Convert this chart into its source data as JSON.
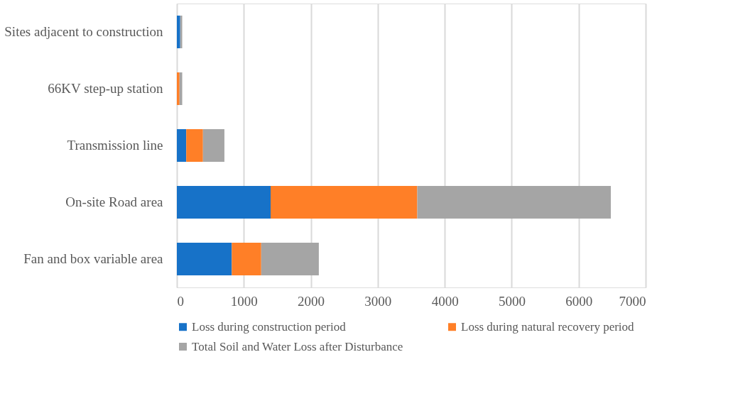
{
  "chart_data": {
    "type": "bar",
    "orientation": "horizontal",
    "stacked": true,
    "categories": [
      "Sites adjacent to construction",
      "66KV step-up station",
      "Transmission line",
      "On-site Road area",
      "Fan and box variable area"
    ],
    "series": [
      {
        "name": "Loss during construction period",
        "color": "#1772c8",
        "values": [
          50,
          0,
          140,
          1400,
          820
        ]
      },
      {
        "name": "Loss during natural recovery period",
        "color": "#ff7f27",
        "values": [
          0,
          40,
          250,
          2190,
          440
        ]
      },
      {
        "name": "Total Soil and Water Loss after Disturbance",
        "color": "#a5a5a5",
        "values": [
          30,
          40,
          320,
          2890,
          860
        ]
      }
    ],
    "xlim": [
      0,
      7000
    ],
    "xticks": [
      0,
      1000,
      2000,
      3000,
      4000,
      5000,
      6000,
      7000
    ],
    "grid": "x",
    "legend": "bottom"
  }
}
